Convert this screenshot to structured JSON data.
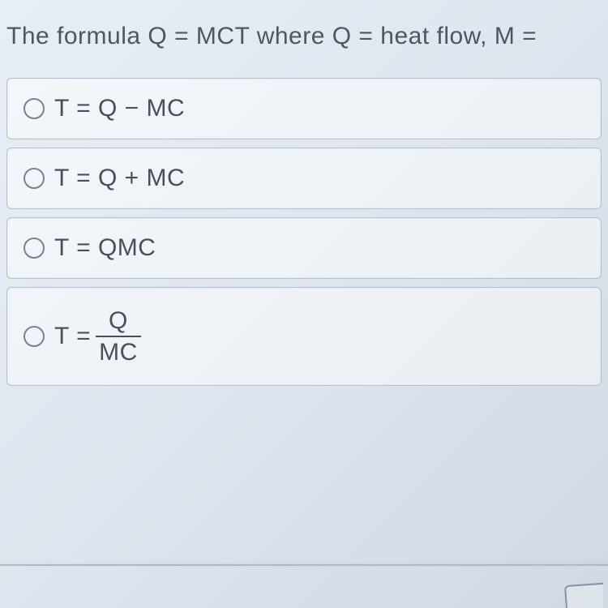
{
  "question": {
    "text": "The formula Q = MCT where Q = heat flow, M ="
  },
  "options": [
    {
      "label": "T = Q − MC",
      "type": "plain"
    },
    {
      "label": "T = Q + MC",
      "type": "plain"
    },
    {
      "label": "T = QMC",
      "type": "plain"
    },
    {
      "prefix": "T = ",
      "numerator": "Q",
      "denominator": "MC",
      "type": "fraction"
    }
  ],
  "colors": {
    "text": "#4a5058",
    "border": "#b8bec8",
    "radio_border": "#7a8290",
    "background_start": "#e8eef5",
    "background_end": "#d0d8e2"
  }
}
